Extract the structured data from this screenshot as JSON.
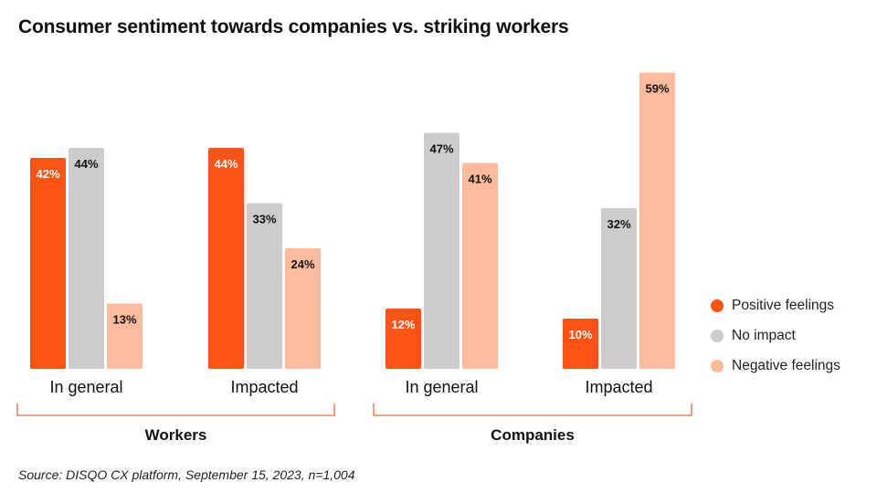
{
  "title": "Consumer sentiment towards companies vs. striking workers",
  "source": "Source: DISQO CX platform, September 15, 2023, n=1,004",
  "colors": {
    "positive": "#FF5314",
    "neutral": "#CCCCCC",
    "negative": "#FDBB9D",
    "bracket": "#E96A3A"
  },
  "chart_data": {
    "type": "bar",
    "title": "Consumer sentiment towards companies vs. striking workers",
    "ylim": [
      0,
      60
    ],
    "grid": false,
    "legend_position": "right",
    "series_names": [
      "Positive feelings",
      "No impact",
      "Negative feelings"
    ],
    "groups": [
      {
        "label": "Workers",
        "categories": [
          {
            "label": "In general",
            "values": [
              42,
              44,
              13
            ],
            "labels": [
              "42%",
              "44%",
              "13%"
            ]
          },
          {
            "label": "Impacted",
            "values": [
              44,
              33,
              24
            ],
            "labels": [
              "44%",
              "33%",
              "24%"
            ]
          }
        ]
      },
      {
        "label": "Companies",
        "categories": [
          {
            "label": "In general",
            "values": [
              12,
              47,
              41
            ],
            "labels": [
              "12%",
              "47%",
              "41%"
            ]
          },
          {
            "label": "Impacted",
            "values": [
              10,
              32,
              59
            ],
            "labels": [
              "10%",
              "32%",
              "59%"
            ]
          }
        ]
      }
    ]
  }
}
